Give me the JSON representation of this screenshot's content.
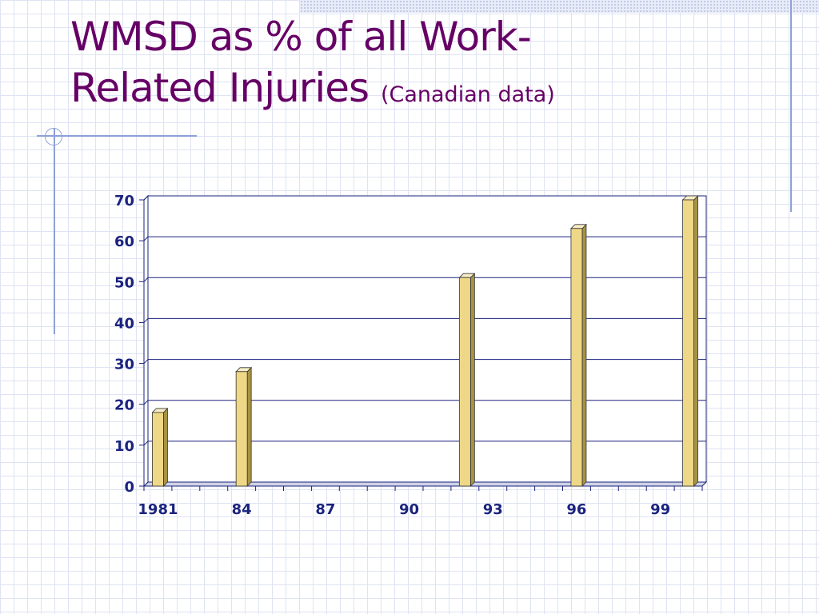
{
  "slide": {
    "title_line1": "WMSD as % of all Work-",
    "title_line2": "Related Injuries",
    "title_note": "(Canadian data)"
  },
  "chart_data": {
    "type": "bar",
    "title": "",
    "xlabel": "",
    "ylabel": "",
    "x_tick_labels": [
      "1981",
      "84",
      "87",
      "90",
      "93",
      "96",
      "99"
    ],
    "x_range": [
      1981,
      2001
    ],
    "points": [
      {
        "year": 1981,
        "value": 18
      },
      {
        "year": 1984,
        "value": 28
      },
      {
        "year": 1992,
        "value": 51
      },
      {
        "year": 1996,
        "value": 63
      },
      {
        "year": 2000,
        "value": 70
      }
    ],
    "y_ticks": [
      0,
      10,
      20,
      30,
      40,
      50,
      60,
      70
    ],
    "ylim": [
      0,
      70
    ],
    "grid": true,
    "legend": "none",
    "bar_color": "#eed887",
    "grid_color": "#1a237e"
  }
}
